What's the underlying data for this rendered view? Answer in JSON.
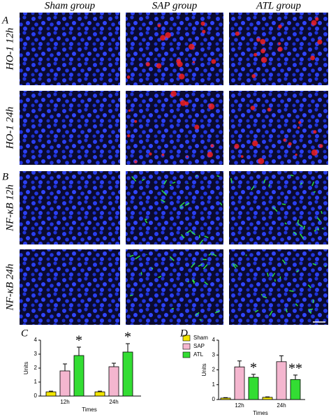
{
  "figure": {
    "column_headers": [
      "Sham group",
      "SAP group",
      "ATL group"
    ],
    "section_labels": [
      "A",
      "B"
    ],
    "row_labels": [
      "HO-1 12h",
      "HO-1 24h",
      "NF-κB 12h",
      "NF-κB 24h"
    ]
  },
  "chart_data": [
    {
      "type": "bar",
      "panel_label": "C",
      "y_label": "Units",
      "x_label": "Times",
      "categories": [
        "12h",
        "24h"
      ],
      "ylim": [
        0,
        4
      ],
      "yticks": [
        0,
        1,
        2,
        3,
        4
      ],
      "legend": "top-right",
      "series": [
        {
          "name": "Sham",
          "color": "#f2e600",
          "values": [
            0.3,
            0.3
          ],
          "errors": [
            0.05,
            0.05
          ]
        },
        {
          "name": "SAP",
          "color": "#f4b6cf",
          "values": [
            1.8,
            2.1
          ],
          "errors": [
            0.5,
            0.25
          ]
        },
        {
          "name": "ATL",
          "color": "#33dd33",
          "values": [
            2.9,
            3.15
          ],
          "errors": [
            0.6,
            0.6
          ],
          "labels": [
            "*",
            "*"
          ]
        }
      ]
    },
    {
      "type": "bar",
      "panel_label": "D",
      "y_label": "Units",
      "x_label": "Times",
      "categories": [
        "12h",
        "24h"
      ],
      "ylim": [
        0,
        4
      ],
      "yticks": [
        0,
        1,
        2,
        3,
        4
      ],
      "series": [
        {
          "color": "#f2e600",
          "values": [
            0.1,
            0.15
          ],
          "errors": [
            0.03,
            0.03
          ]
        },
        {
          "color": "#f4b6cf",
          "values": [
            2.2,
            2.55
          ],
          "errors": [
            0.4,
            0.4
          ]
        },
        {
          "color": "#33dd33",
          "values": [
            1.5,
            1.35
          ],
          "errors": [
            0.2,
            0.3
          ],
          "labels": [
            "*",
            "**"
          ]
        }
      ]
    }
  ]
}
